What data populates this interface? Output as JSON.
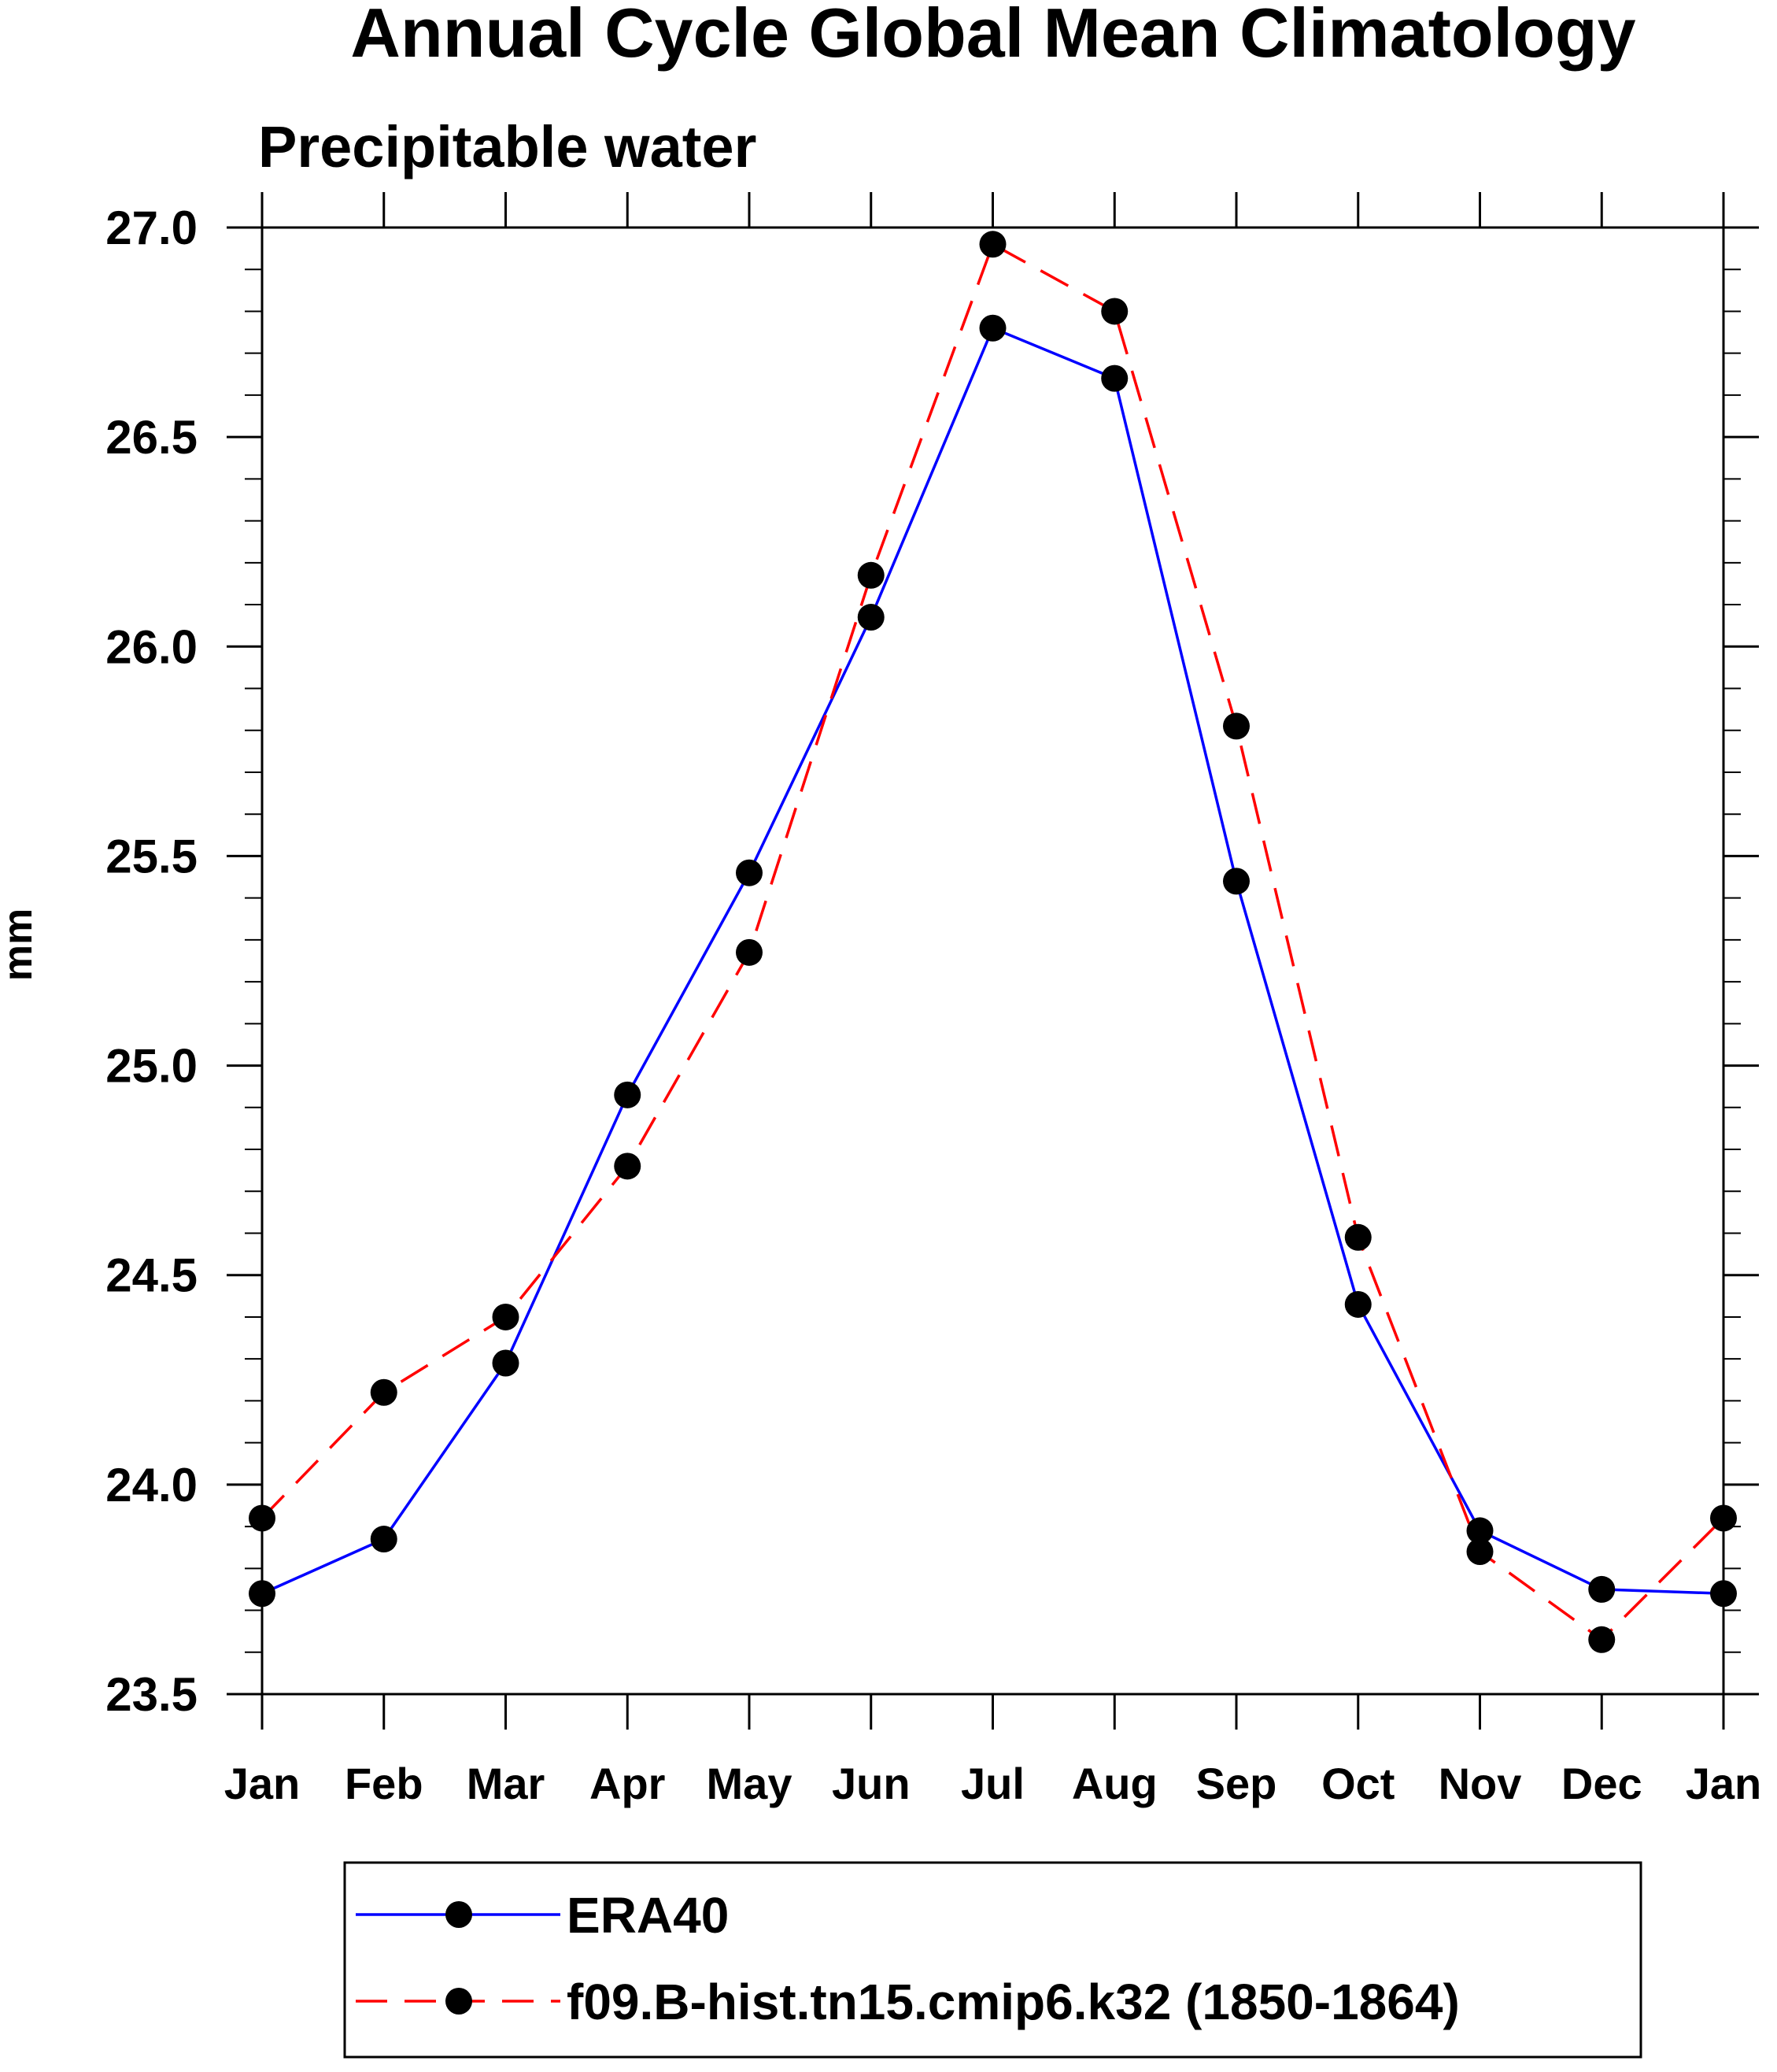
{
  "chart_data": {
    "type": "line",
    "title": "Annual Cycle Global Mean Climatology",
    "subtitle": "Precipitable water",
    "xlabel": "",
    "ylabel": "mm",
    "categories": [
      "Jan",
      "Feb",
      "Mar",
      "Apr",
      "May",
      "Jun",
      "Jul",
      "Aug",
      "Sep",
      "Oct",
      "Nov",
      "Dec",
      "Jan"
    ],
    "ylim": [
      23.5,
      27.0
    ],
    "yticks": [
      "23.5",
      "24.0",
      "24.5",
      "25.0",
      "25.5",
      "26.0",
      "26.5",
      "27.0"
    ],
    "grid": false,
    "legend_position": "bottom",
    "series": [
      {
        "name": "ERA40",
        "color": "#0000ff",
        "dash": "solid",
        "values": [
          23.74,
          23.87,
          24.29,
          24.93,
          25.46,
          26.07,
          26.76,
          26.64,
          25.44,
          24.43,
          23.89,
          23.75,
          23.74
        ]
      },
      {
        "name": "f09.B-hist.tn15.cmip6.k32 (1850-1864)",
        "color": "#ff0000",
        "dash": "dashed",
        "values": [
          23.92,
          24.22,
          24.4,
          24.76,
          25.27,
          26.17,
          26.96,
          26.8,
          25.81,
          24.59,
          23.84,
          23.63,
          23.92
        ]
      }
    ]
  }
}
